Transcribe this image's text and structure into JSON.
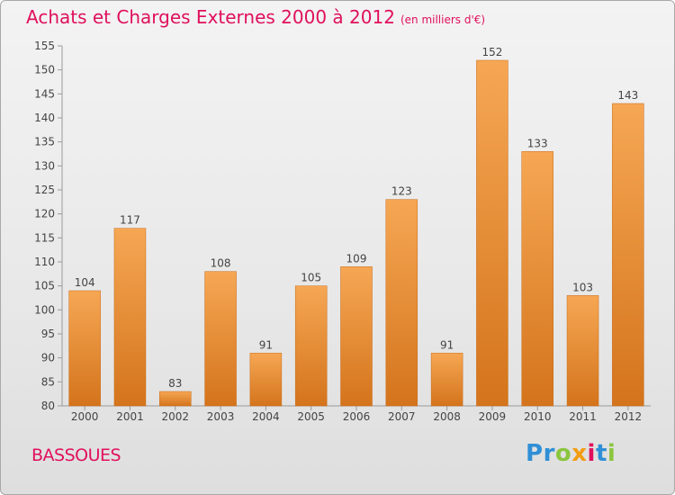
{
  "header": {
    "title": "Achats et Charges Externes 2000 à 2012",
    "unit": "(en milliers d'€)"
  },
  "footer": {
    "city": "BASSOUES",
    "logo_text": "Proxiti"
  },
  "colors": {
    "accent": "#e0105c",
    "bar_top": "#f6a754",
    "bar_bottom": "#d4741c",
    "logo": [
      "#2f8fd6",
      "#2f8fd6",
      "#8bc53f",
      "#f39c12",
      "#e0105c",
      "#2f8fd6",
      "#8bc53f"
    ]
  },
  "chart_data": {
    "type": "bar",
    "categories": [
      "2000",
      "2001",
      "2002",
      "2003",
      "2004",
      "2005",
      "2006",
      "2007",
      "2008",
      "2009",
      "2010",
      "2011",
      "2012"
    ],
    "values": [
      104,
      117,
      83,
      108,
      91,
      105,
      109,
      123,
      91,
      152,
      133,
      103,
      143
    ],
    "ylim": [
      80,
      155
    ],
    "yticks": [
      80,
      85,
      90,
      95,
      100,
      105,
      110,
      115,
      120,
      125,
      130,
      135,
      140,
      145,
      150,
      155
    ],
    "grid": false,
    "data_labels": true
  }
}
